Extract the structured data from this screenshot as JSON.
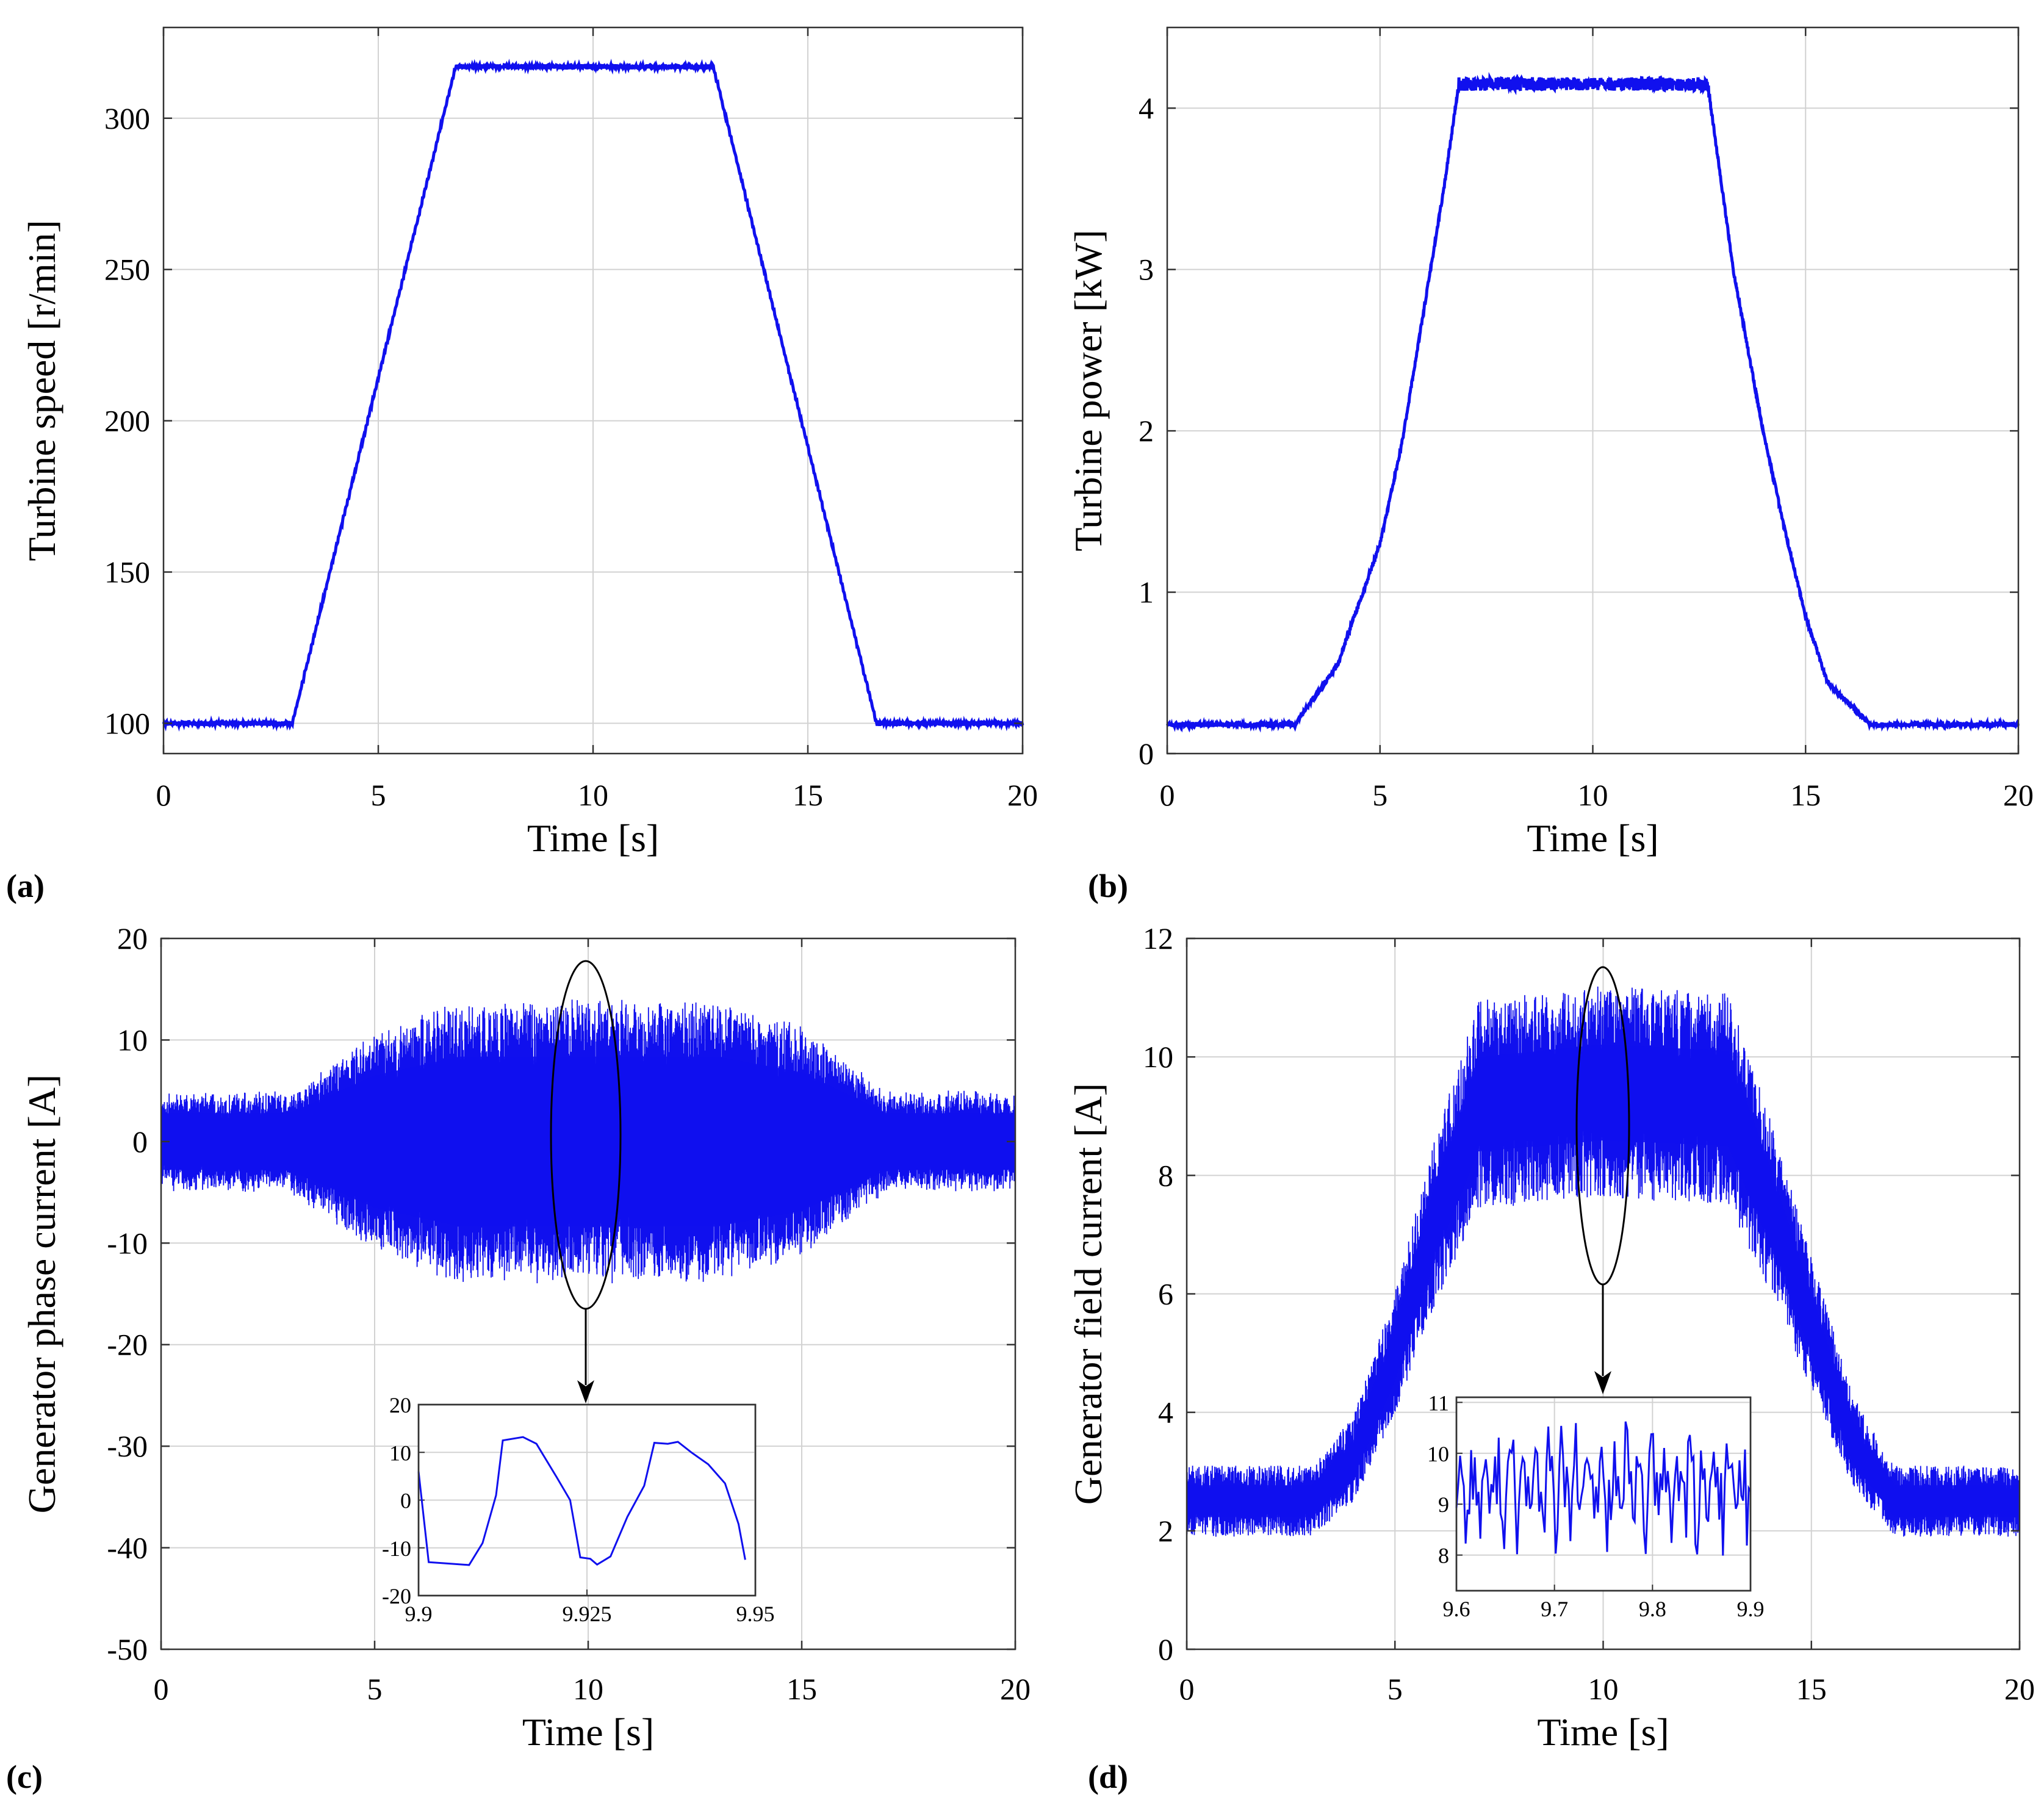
{
  "colors": {
    "series": "#1010ee",
    "grid": "#d2d2d2",
    "axis": "#333333"
  },
  "chart_data": [
    {
      "id": "a",
      "panel_label": "(a)",
      "type": "line",
      "xlabel": "Time [s]",
      "ylabel": "Turbine speed [r/min]",
      "xlim": [
        0,
        20
      ],
      "ylim": [
        90,
        330
      ],
      "xticks": [
        0,
        5,
        10,
        15,
        20
      ],
      "yticks": [
        100,
        150,
        200,
        250,
        300
      ],
      "grid": true,
      "series": [
        {
          "name": "Turbine speed",
          "x": [
            0,
            3.0,
            6.8,
            12.8,
            16.6,
            20
          ],
          "y": [
            100,
            100,
            317,
            317,
            100,
            100
          ],
          "noise": 0.8
        }
      ]
    },
    {
      "id": "b",
      "panel_label": "(b)",
      "type": "line",
      "xlabel": "Time [s]",
      "ylabel": "Turbine power [kW]",
      "xlim": [
        0,
        20
      ],
      "ylim": [
        0,
        4.5
      ],
      "xticks": [
        0,
        5,
        10,
        15,
        20
      ],
      "yticks": [
        0,
        1,
        2,
        3,
        4
      ],
      "grid": true,
      "series": [
        {
          "name": "Turbine power",
          "x": [
            0,
            3.0,
            4.0,
            5.0,
            5.5,
            6.0,
            6.5,
            6.85,
            12.7,
            13.3,
            14.0,
            14.5,
            15.0,
            15.5,
            16.5,
            20
          ],
          "y": [
            0.18,
            0.18,
            0.55,
            1.3,
            1.9,
            2.7,
            3.5,
            4.15,
            4.15,
            3.0,
            2.0,
            1.4,
            0.85,
            0.45,
            0.18,
            0.18
          ],
          "noise": 0.03
        }
      ]
    },
    {
      "id": "c",
      "panel_label": "(c)",
      "type": "line",
      "xlabel": "Time [s]",
      "ylabel": "Generator phase current [A]",
      "xlim": [
        0,
        20
      ],
      "ylim": [
        -50,
        20
      ],
      "xticks": [
        0,
        5,
        10,
        15,
        20
      ],
      "yticks": [
        -50,
        -40,
        -30,
        -20,
        -10,
        0,
        10,
        20
      ],
      "grid": true,
      "series": [
        {
          "name": "Phase current envelope",
          "x": [
            0,
            3.0,
            5.0,
            7.0,
            10.0,
            13.0,
            15.0,
            17.0,
            20
          ],
          "y": [
            4.5,
            4.5,
            10.5,
            13.5,
            13.5,
            13.5,
            11.0,
            4.5,
            4.5
          ]
        }
      ],
      "inset": {
        "xlim": [
          9.9,
          9.95
        ],
        "ylim": [
          -20,
          20
        ],
        "xticks": [
          9.9,
          9.925,
          9.95
        ],
        "xtick_labels": [
          "9.9",
          "9.925",
          "9.95"
        ],
        "yticks": [
          -20,
          -10,
          0,
          10,
          20
        ],
        "x": [
          9.9,
          9.9015,
          9.9035,
          9.9075,
          9.9095,
          9.9115,
          9.9125,
          9.9155,
          9.9175,
          9.9205,
          9.9225,
          9.924,
          9.9255,
          9.9265,
          9.9285,
          9.931,
          9.9335,
          9.935,
          9.937,
          9.9385,
          9.9405,
          9.943,
          9.9455,
          9.9475,
          9.9485
        ],
        "y": [
          6,
          -13,
          -13.2,
          -13.6,
          -9,
          1,
          12.5,
          13.2,
          11.8,
          4.8,
          0,
          -12,
          -12.3,
          -13.5,
          -11.8,
          -3.5,
          3,
          12,
          11.8,
          12.2,
          10,
          7.5,
          3.5,
          -5,
          -12.5
        ]
      }
    },
    {
      "id": "d",
      "panel_label": "(d)",
      "type": "line",
      "xlabel": "Time [s]",
      "ylabel": "Generator field current [A]",
      "xlim": [
        0,
        20
      ],
      "ylim": [
        0,
        12
      ],
      "xticks": [
        0,
        5,
        10,
        15,
        20
      ],
      "yticks": [
        0,
        2,
        4,
        6,
        8,
        10,
        12
      ],
      "grid": true,
      "series": [
        {
          "name": "Field current mean",
          "x": [
            0,
            3.0,
            4.0,
            5.0,
            6.0,
            7.0,
            10.0,
            13.0,
            14.0,
            15.0,
            16.0,
            17.0,
            20
          ],
          "y": [
            2.5,
            2.5,
            3.2,
            5.0,
            7.3,
            9.2,
            9.4,
            9.3,
            7.5,
            5.5,
            3.5,
            2.5,
            2.5
          ],
          "noise_low": 0.6,
          "noise_high": 1.8
        }
      ],
      "inset": {
        "xlim": [
          9.6,
          9.9
        ],
        "ylim": [
          7.3,
          11.1
        ],
        "xticks": [
          9.6,
          9.7,
          9.8,
          9.9
        ],
        "xtick_labels": [
          "9.6",
          "9.7",
          "9.8",
          "9.9"
        ],
        "yticks": [
          8,
          9,
          10,
          11
        ],
        "center": 9.3,
        "amplitude": 1.0
      }
    }
  ]
}
